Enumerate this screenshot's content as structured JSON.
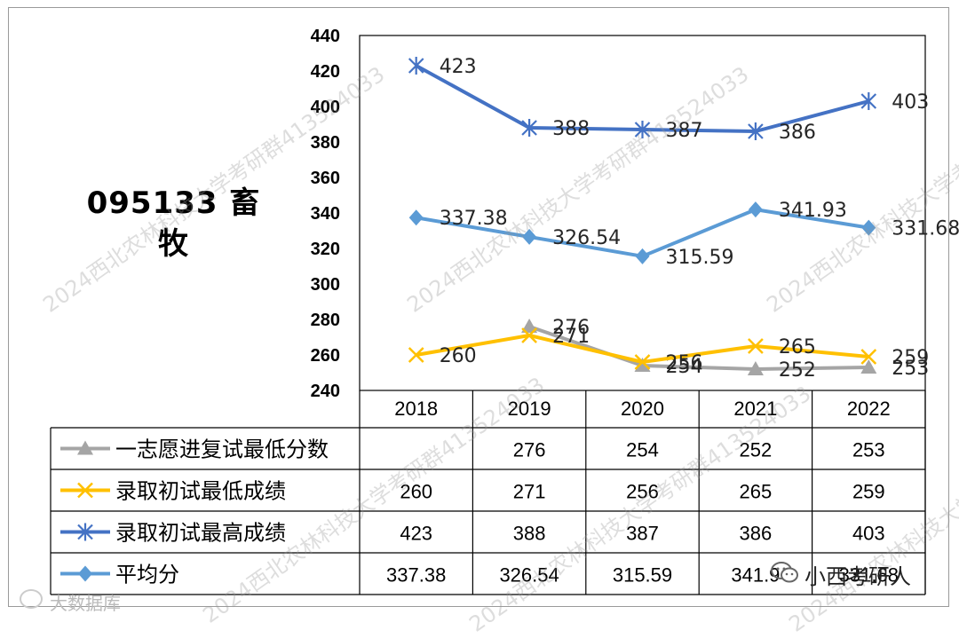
{
  "chart_data": {
    "type": "line",
    "title": "095133 畜牧",
    "categories": [
      "2018",
      "2019",
      "2020",
      "2021",
      "2022"
    ],
    "ylim": [
      240,
      440
    ],
    "yticks": [
      240,
      260,
      280,
      300,
      320,
      340,
      360,
      380,
      400,
      420,
      440
    ],
    "grid": false,
    "legend": "table-below",
    "series": [
      {
        "name": "一志愿进复试最低分数",
        "values": [
          null,
          276,
          254,
          252,
          253
        ],
        "labels": [
          "",
          "276",
          "254",
          "252",
          "253"
        ],
        "color": "#a5a5a5",
        "marker": "triangle"
      },
      {
        "name": "录取初试最低成绩",
        "values": [
          260,
          271,
          256,
          265,
          259
        ],
        "labels": [
          "260",
          "271",
          "256",
          "265",
          "259"
        ],
        "color": "#ffc000",
        "marker": "x"
      },
      {
        "name": "录取初试最高成绩",
        "values": [
          423,
          388,
          387,
          386,
          403
        ],
        "labels": [
          "423",
          "388",
          "387",
          "386",
          "403"
        ],
        "color": "#4472c4",
        "marker": "asterisk"
      },
      {
        "name": "平均分",
        "values": [
          337.38,
          326.54,
          315.59,
          341.93,
          331.68
        ],
        "labels": [
          "337.38",
          "326.54",
          "315.59",
          "341.93",
          "331.68"
        ],
        "color": "#5b9bd5",
        "marker": "diamond"
      }
    ],
    "table_cells": [
      [
        "",
        "276",
        "254",
        "252",
        "253"
      ],
      [
        "260",
        "271",
        "256",
        "265",
        "259"
      ],
      [
        "423",
        "388",
        "387",
        "386",
        "403"
      ],
      [
        "337.38",
        "326.54",
        "315.59",
        "341.9",
        "331.68"
      ]
    ]
  },
  "watermarks": [
    "2024西北农林科技大学考研群413524033"
  ],
  "branding": {
    "wechat_account": "小西考研人",
    "footer_text": "大数据库"
  }
}
